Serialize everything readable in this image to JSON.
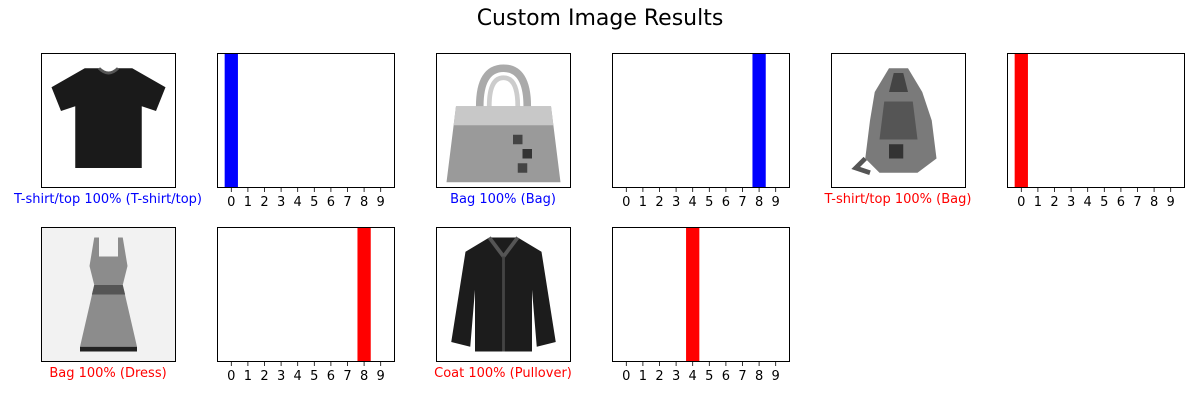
{
  "figure": {
    "title": "Custom Image Results"
  },
  "colors": {
    "correct": "#0000ff",
    "incorrect": "#ff0000",
    "frame": "#000000"
  },
  "panels": [
    {
      "image_icon": "tshirt-image",
      "caption": "T-shirt/top 100% (T-shirt/top)",
      "correct": true
    },
    {
      "image_icon": "bag-image",
      "caption": "Bag 100% (Bag)",
      "correct": true
    },
    {
      "image_icon": "backpack-image",
      "caption": "T-shirt/top 100% (Bag)",
      "correct": false
    },
    {
      "image_icon": "dress-image",
      "caption": "Bag 100% (Dress)",
      "correct": false
    },
    {
      "image_icon": "jacket-image",
      "caption": "Coat 100% (Pullover)",
      "correct": false
    }
  ],
  "chart_data": [
    {
      "type": "bar",
      "categories": [
        "0",
        "1",
        "2",
        "3",
        "4",
        "5",
        "6",
        "7",
        "8",
        "9"
      ],
      "values": [
        1,
        0,
        0,
        0,
        0,
        0,
        0,
        0,
        0,
        0
      ],
      "ylim": [
        0,
        1
      ],
      "bar_color": "#0000ff"
    },
    {
      "type": "bar",
      "categories": [
        "0",
        "1",
        "2",
        "3",
        "4",
        "5",
        "6",
        "7",
        "8",
        "9"
      ],
      "values": [
        0,
        0,
        0,
        0,
        0,
        0,
        0,
        0,
        1,
        0
      ],
      "ylim": [
        0,
        1
      ],
      "bar_color": "#0000ff"
    },
    {
      "type": "bar",
      "categories": [
        "0",
        "1",
        "2",
        "3",
        "4",
        "5",
        "6",
        "7",
        "8",
        "9"
      ],
      "values": [
        1,
        0,
        0,
        0,
        0,
        0,
        0,
        0,
        0,
        0
      ],
      "ylim": [
        0,
        1
      ],
      "bar_color": "#ff0000"
    },
    {
      "type": "bar",
      "categories": [
        "0",
        "1",
        "2",
        "3",
        "4",
        "5",
        "6",
        "7",
        "8",
        "9"
      ],
      "values": [
        0,
        0,
        0,
        0,
        0,
        0,
        0,
        0,
        1,
        0
      ],
      "ylim": [
        0,
        1
      ],
      "bar_color": "#ff0000"
    },
    {
      "type": "bar",
      "categories": [
        "0",
        "1",
        "2",
        "3",
        "4",
        "5",
        "6",
        "7",
        "8",
        "9"
      ],
      "values": [
        0,
        0,
        0,
        0,
        1,
        0,
        0,
        0,
        0,
        0
      ],
      "ylim": [
        0,
        1
      ],
      "bar_color": "#ff0000"
    }
  ]
}
